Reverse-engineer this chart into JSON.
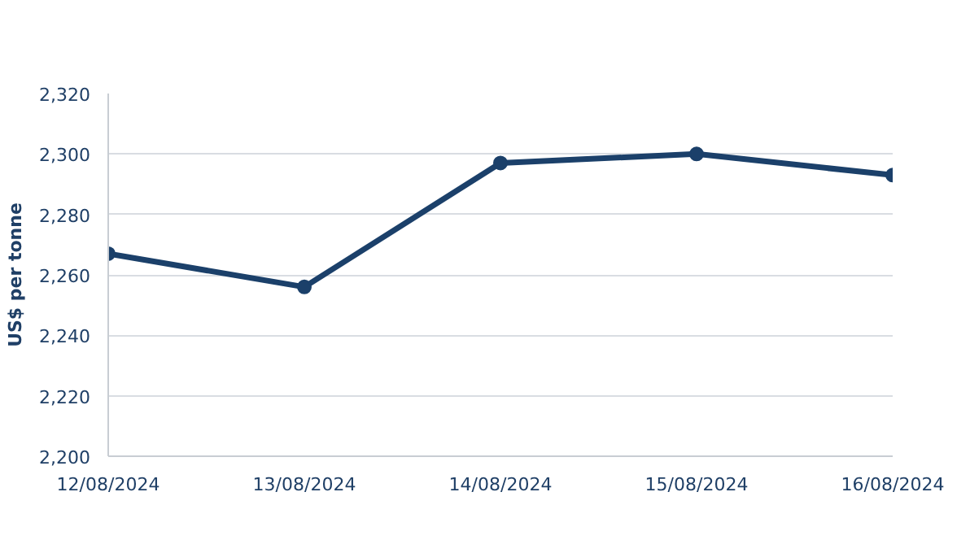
{
  "chart_data": {
    "type": "line",
    "ylabel": "US$ per tonne",
    "categories": [
      "12/08/2024",
      "13/08/2024",
      "14/08/2024",
      "15/08/2024",
      "16/08/2024"
    ],
    "series": [
      {
        "color": "#1b406a",
        "values": [
          2267,
          2256,
          2297,
          2300,
          2293
        ]
      }
    ],
    "ylim": [
      2200,
      2320
    ],
    "yticks": [
      {
        "value": 2200,
        "label": "2,200"
      },
      {
        "value": 2220,
        "label": "2,220"
      },
      {
        "value": 2240,
        "label": "2,240"
      },
      {
        "value": 2260,
        "label": "2,260"
      },
      {
        "value": 2280,
        "label": "2,280"
      },
      {
        "value": 2300,
        "label": "2,300"
      },
      {
        "value": 2320,
        "label": "2,320"
      }
    ],
    "grid": "y",
    "marker": "circle",
    "line_style": "solid"
  }
}
